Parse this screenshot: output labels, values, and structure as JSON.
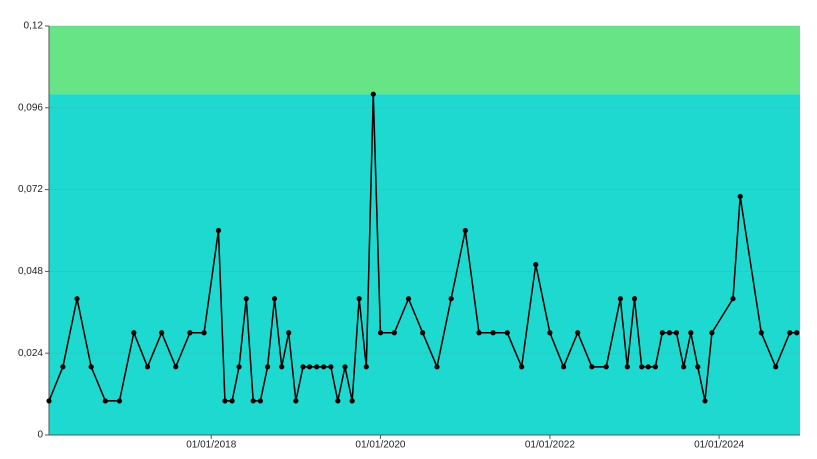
{
  "chart_data": {
    "type": "line",
    "x": [
      "2016-02-01",
      "2016-04-01",
      "2016-06-01",
      "2016-08-01",
      "2016-10-01",
      "2016-12-01",
      "2017-02-01",
      "2017-04-01",
      "2017-06-01",
      "2017-08-01",
      "2017-10-01",
      "2017-12-01",
      "2018-02-01",
      "2018-03-01",
      "2018-04-01",
      "2018-05-01",
      "2018-06-01",
      "2018-07-01",
      "2018-08-01",
      "2018-09-01",
      "2018-10-01",
      "2018-11-01",
      "2018-12-01",
      "2019-01-01",
      "2019-02-01",
      "2019-03-01",
      "2019-04-01",
      "2019-05-01",
      "2019-06-01",
      "2019-07-01",
      "2019-08-01",
      "2019-09-01",
      "2019-10-01",
      "2019-11-01",
      "2019-12-01",
      "2020-01-01",
      "2020-03-01",
      "2020-05-01",
      "2020-07-01",
      "2020-09-01",
      "2020-11-01",
      "2021-01-01",
      "2021-03-01",
      "2021-05-01",
      "2021-07-01",
      "2021-09-01",
      "2021-11-01",
      "2022-01-01",
      "2022-03-01",
      "2022-05-01",
      "2022-07-01",
      "2022-09-01",
      "2022-11-01",
      "2022-12-01",
      "2023-01-01",
      "2023-02-01",
      "2023-03-01",
      "2023-04-01",
      "2023-05-01",
      "2023-06-01",
      "2023-07-01",
      "2023-08-01",
      "2023-09-01",
      "2023-10-01",
      "2023-11-01",
      "2023-12-01",
      "2024-03-01",
      "2024-04-01",
      "2024-07-01",
      "2024-09-01",
      "2024-11-01",
      "2024-12-01"
    ],
    "series": [
      {
        "color": "#000000",
        "values": [
          0.01,
          0.02,
          0.04,
          0.02,
          0.01,
          0.01,
          0.03,
          0.02,
          0.03,
          0.02,
          0.03,
          0.03,
          0.06,
          0.01,
          0.01,
          0.02,
          0.04,
          0.01,
          0.01,
          0.02,
          0.04,
          0.02,
          0.03,
          0.01,
          0.02,
          0.02,
          0.02,
          0.02,
          0.02,
          0.01,
          0.02,
          0.01,
          0.04,
          0.02,
          0.1,
          0.03,
          0.03,
          0.04,
          0.03,
          0.02,
          0.04,
          0.06,
          0.03,
          0.03,
          0.03,
          0.02,
          0.05,
          0.03,
          0.02,
          0.03,
          0.02,
          0.02,
          0.04,
          0.02,
          0.04,
          0.02,
          0.02,
          0.02,
          0.03,
          0.03,
          0.03,
          0.02,
          0.03,
          0.02,
          0.01,
          0.03,
          0.04,
          0.07,
          0.03,
          0.02,
          0.03,
          0.03
        ]
      }
    ],
    "xlim": [
      "2016-02-01",
      "2024-12-15"
    ],
    "xticks": [
      {
        "value": "2018-01-01",
        "label": "01/01/2018"
      },
      {
        "value": "2020-01-01",
        "label": "01/01/2020"
      },
      {
        "value": "2022-01-01",
        "label": "01/01/2022"
      },
      {
        "value": "2024-01-01",
        "label": "01/01/2024"
      }
    ],
    "ylim": [
      0,
      0.12
    ],
    "yticks": [
      0,
      {
        "value": 0.024,
        "label": "0,024"
      },
      {
        "value": 0.048,
        "label": "0,048"
      },
      {
        "value": 0.072,
        "label": "0,072"
      },
      {
        "value": 0.096,
        "label": "0,096"
      },
      {
        "value": 0.12,
        "label": "0,12"
      }
    ],
    "bands": [
      {
        "from": 0,
        "to": 0.1,
        "color": "#1dd9cf"
      },
      {
        "from": 0.1,
        "to": 0.12,
        "color": "#67e586"
      }
    ],
    "grid": true
  }
}
